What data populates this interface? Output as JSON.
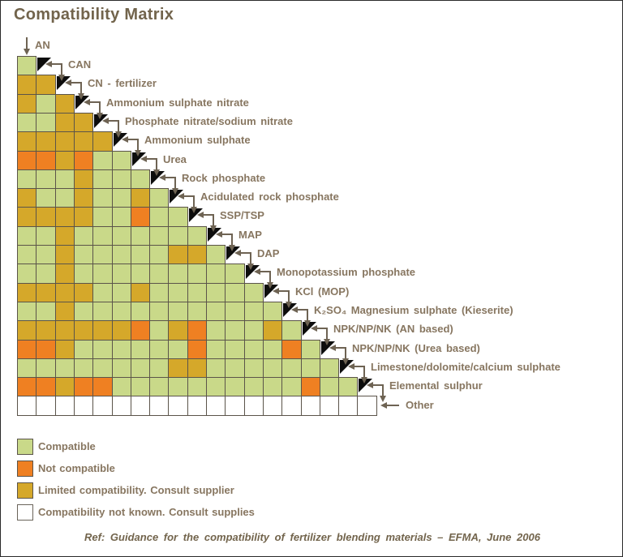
{
  "title": "Compatibility Matrix",
  "chart_data": {
    "type": "heatmap",
    "title": "Compatibility Matrix",
    "description_codes": {
      "C": "Compatible",
      "N": "Not compatible",
      "L": "Limited compatibility. Consult supplier",
      "U": "Compatibility not known. Consult supplies"
    },
    "colors": {
      "C": "#c9d989",
      "N": "#ef8022",
      "L": "#d5a82a",
      "U": "#ffffff"
    },
    "materials": [
      "AN",
      "CAN",
      "CN - fertilizer",
      "Ammonium sulphate nitrate",
      "Phosphate nitrate/sodium nitrate",
      "Ammonium sulphate",
      "Urea",
      "Rock phosphate",
      "Acidulated rock phosphate",
      "SSP/TSP",
      "MAP",
      "DAP",
      "Monopotassium phosphate",
      "KCl (MOP)",
      "K₂SO₄ Magnesium sulphate (Kieserite)",
      "NPK/NP/NK (AN based)",
      "NPK/NP/NK (Urea based)",
      "Limestone/dolomite/calcium sulphate",
      "Elemental sulphur",
      "Other"
    ],
    "rows": [
      {
        "material": "CAN",
        "cells": [
          "C"
        ]
      },
      {
        "material": "CN - fertilizer",
        "cells": [
          "L",
          "L"
        ]
      },
      {
        "material": "Ammonium sulphate nitrate",
        "cells": [
          "L",
          "C",
          "L"
        ]
      },
      {
        "material": "Phosphate nitrate/sodium nitrate",
        "cells": [
          "C",
          "C",
          "L",
          "L"
        ]
      },
      {
        "material": "Ammonium sulphate",
        "cells": [
          "L",
          "L",
          "L",
          "L",
          "L"
        ]
      },
      {
        "material": "Urea",
        "cells": [
          "N",
          "N",
          "L",
          "N",
          "C",
          "C"
        ]
      },
      {
        "material": "Rock phosphate",
        "cells": [
          "C",
          "C",
          "C",
          "L",
          "C",
          "C",
          "C"
        ]
      },
      {
        "material": "Acidulated rock phosphate",
        "cells": [
          "L",
          "C",
          "C",
          "L",
          "C",
          "C",
          "L",
          "C"
        ]
      },
      {
        "material": "SSP/TSP",
        "cells": [
          "L",
          "L",
          "L",
          "L",
          "C",
          "C",
          "N",
          "C",
          "C"
        ]
      },
      {
        "material": "MAP",
        "cells": [
          "C",
          "C",
          "L",
          "C",
          "C",
          "C",
          "C",
          "C",
          "C",
          "C"
        ]
      },
      {
        "material": "DAP",
        "cells": [
          "C",
          "C",
          "L",
          "C",
          "C",
          "C",
          "C",
          "C",
          "L",
          "L",
          "C"
        ]
      },
      {
        "material": "Monopotassium phosphate",
        "cells": [
          "C",
          "C",
          "L",
          "C",
          "C",
          "C",
          "C",
          "C",
          "C",
          "C",
          "C",
          "C"
        ]
      },
      {
        "material": "KCl (MOP)",
        "cells": [
          "L",
          "L",
          "L",
          "L",
          "C",
          "C",
          "L",
          "C",
          "C",
          "C",
          "C",
          "C",
          "C"
        ]
      },
      {
        "material": "K₂SO₄ Magnesium sulphate (Kieserite)",
        "cells": [
          "C",
          "C",
          "L",
          "C",
          "C",
          "C",
          "C",
          "C",
          "C",
          "C",
          "C",
          "C",
          "C",
          "C"
        ]
      },
      {
        "material": "NPK/NP/NK (AN based)",
        "cells": [
          "L",
          "L",
          "L",
          "L",
          "L",
          "L",
          "N",
          "C",
          "L",
          "N",
          "C",
          "C",
          "C",
          "L",
          "C"
        ]
      },
      {
        "material": "NPK/NP/NK (Urea based)",
        "cells": [
          "N",
          "N",
          "L",
          "C",
          "C",
          "C",
          "C",
          "C",
          "C",
          "N",
          "C",
          "C",
          "C",
          "C",
          "N",
          "C"
        ]
      },
      {
        "material": "Limestone/dolomite/calcium sulphate",
        "cells": [
          "C",
          "C",
          "C",
          "C",
          "C",
          "C",
          "C",
          "C",
          "L",
          "L",
          "C",
          "C",
          "C",
          "C",
          "C",
          "C",
          "C"
        ]
      },
      {
        "material": "Elemental sulphur",
        "cells": [
          "N",
          "N",
          "L",
          "N",
          "N",
          "C",
          "C",
          "C",
          "C",
          "C",
          "C",
          "C",
          "C",
          "C",
          "C",
          "N",
          "C",
          "C"
        ]
      },
      {
        "material": "Other",
        "cells": [
          "U",
          "U",
          "U",
          "U",
          "U",
          "U",
          "U",
          "U",
          "U",
          "U",
          "U",
          "U",
          "U",
          "U",
          "U",
          "U",
          "U",
          "U",
          "U"
        ]
      }
    ]
  },
  "legend": {
    "items": [
      {
        "code": "C",
        "label": "Compatible"
      },
      {
        "code": "N",
        "label": "Not compatible"
      },
      {
        "code": "L",
        "label": "Limited compatibility. Consult supplier"
      },
      {
        "code": "U",
        "label": "Compatibility not known. Consult supplies"
      }
    ]
  },
  "footer": {
    "ref": "Ref: Guidance for the compatibility of fertilizer blending materials – EFMA, June 2006"
  }
}
